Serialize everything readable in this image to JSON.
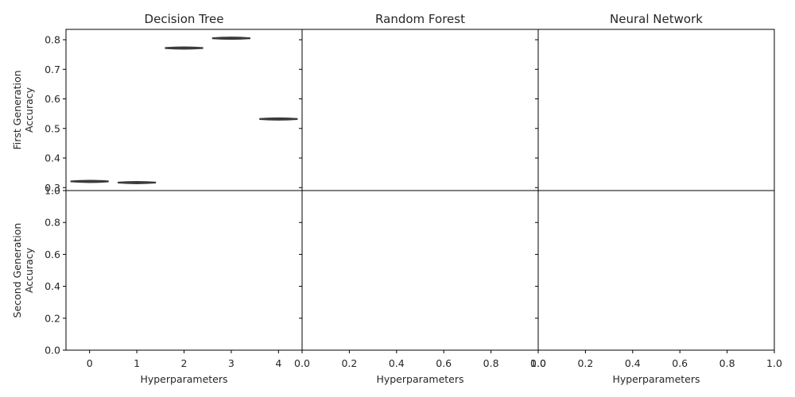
{
  "chart_data": {
    "type": "violin",
    "layout": {
      "rows": 2,
      "cols": 3,
      "sharey": "row",
      "sharex": "none"
    },
    "column_titles": [
      "Decision Tree",
      "Random Forest",
      "Neural Network"
    ],
    "row_labels": [
      [
        "First Generation",
        "Accuracy"
      ],
      [
        "Second Generation",
        "Accuracy"
      ]
    ],
    "xlabel": "Hyperparameters",
    "rows": [
      {
        "ylim": [
          0.29,
          0.835
        ],
        "yticks": [
          "0.3",
          "0.4",
          "0.5",
          "0.6",
          "0.7",
          "0.8"
        ],
        "ytick_values": [
          0.3,
          0.4,
          0.5,
          0.6,
          0.7,
          0.8
        ]
      },
      {
        "ylim": [
          0.0,
          1.0
        ],
        "yticks": [
          "0.0",
          "0.2",
          "0.4",
          "0.6",
          "0.8",
          "1.0"
        ],
        "ytick_values": [
          0.0,
          0.2,
          0.4,
          0.6,
          0.8,
          1.0
        ]
      }
    ],
    "panels": [
      {
        "row": 0,
        "col": 0,
        "title": "Decision Tree",
        "categories": [
          "0",
          "1",
          "2",
          "3",
          "4"
        ],
        "xlim": [
          -0.5,
          4.5
        ],
        "show_xticks": false,
        "series": [
          {
            "name": "First Generation Accuracy",
            "values": [
              0.321,
              0.317,
              0.772,
              0.805,
              0.532
            ]
          }
        ]
      },
      {
        "row": 0,
        "col": 1,
        "title": "Random Forest",
        "categories": [],
        "show_xticks": false,
        "series": []
      },
      {
        "row": 0,
        "col": 2,
        "title": "Neural Network",
        "categories": [],
        "show_xticks": false,
        "series": []
      },
      {
        "row": 1,
        "col": 0,
        "categories": [
          "0",
          "1",
          "2",
          "3",
          "4"
        ],
        "xlim": [
          -0.5,
          4.5
        ],
        "show_xticks": true,
        "xlabel": "Hyperparameters",
        "series": []
      },
      {
        "row": 1,
        "col": 1,
        "xticks": [
          "0.0",
          "0.2",
          "0.4",
          "0.6",
          "0.8",
          "1.0"
        ],
        "xtick_values": [
          0.0,
          0.2,
          0.4,
          0.6,
          0.8,
          1.0
        ],
        "xlim": [
          0,
          1
        ],
        "show_xticks": true,
        "xlabel": "Hyperparameters",
        "series": []
      },
      {
        "row": 1,
        "col": 2,
        "xticks": [
          "0.0",
          "0.2",
          "0.4",
          "0.6",
          "0.8",
          "1.0"
        ],
        "xtick_values": [
          0.0,
          0.2,
          0.4,
          0.6,
          0.8,
          1.0
        ],
        "xlim": [
          0,
          1
        ],
        "show_xticks": true,
        "xlabel": "Hyperparameters",
        "series": []
      }
    ]
  }
}
